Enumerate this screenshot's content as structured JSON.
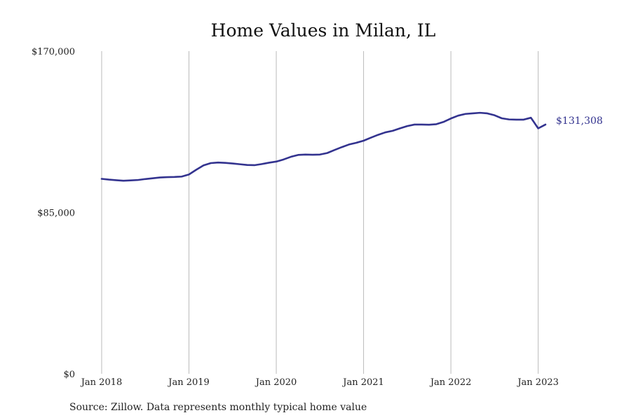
{
  "chart_data": {
    "type": "line",
    "title": "Home Values in Milan, IL",
    "xlabel": "",
    "ylabel": "",
    "source": "Source: Zillow. Data represents monthly typical home value",
    "x_ticks": [
      "Jan 2018",
      "Jan 2019",
      "Jan 2020",
      "Jan 2021",
      "Jan 2022",
      "Jan 2023"
    ],
    "y_ticks": [
      "$0",
      "$85,000",
      "$170,000"
    ],
    "y_tick_values": [
      0,
      85000,
      170000
    ],
    "ylim": [
      0,
      170000
    ],
    "xlim": [
      "2018-01",
      "2023-02"
    ],
    "grid": "vertical",
    "line_color": "#33338f",
    "grid_color": "#bbbbbb",
    "end_label": "$131,308",
    "series": [
      {
        "x": [
          "2018-01",
          "2018-02",
          "2018-03",
          "2018-04",
          "2018-05",
          "2018-06",
          "2018-07",
          "2018-08",
          "2018-09",
          "2018-10",
          "2018-11",
          "2018-12",
          "2019-01",
          "2019-02",
          "2019-03",
          "2019-04",
          "2019-05",
          "2019-06",
          "2019-07",
          "2019-08",
          "2019-09",
          "2019-10",
          "2019-11",
          "2019-12",
          "2020-01",
          "2020-02",
          "2020-03",
          "2020-04",
          "2020-05",
          "2020-06",
          "2020-07",
          "2020-08",
          "2020-09",
          "2020-10",
          "2020-11",
          "2020-12",
          "2021-01",
          "2021-02",
          "2021-03",
          "2021-04",
          "2021-05",
          "2021-06",
          "2021-07",
          "2021-08",
          "2021-09",
          "2021-10",
          "2021-11",
          "2021-12",
          "2022-01",
          "2022-02",
          "2022-03",
          "2022-04",
          "2022-05",
          "2022-06",
          "2022-07",
          "2022-08",
          "2022-09",
          "2022-10",
          "2022-11",
          "2022-12",
          "2023-01",
          "2023-02"
        ],
        "values": [
          102700,
          102300,
          102000,
          101700,
          101900,
          102100,
          102600,
          103000,
          103400,
          103600,
          103700,
          103900,
          105000,
          107500,
          109800,
          111000,
          111300,
          111100,
          110800,
          110400,
          110000,
          109900,
          110500,
          111200,
          111800,
          112900,
          114300,
          115300,
          115500,
          115400,
          115500,
          116300,
          117900,
          119400,
          120800,
          121700,
          122800,
          124400,
          125900,
          127200,
          128000,
          129300,
          130500,
          131300,
          131300,
          131200,
          131500,
          132700,
          134500,
          136000,
          136900,
          137200,
          137500,
          137200,
          136200,
          134600,
          134000,
          133900,
          133900,
          134900,
          129300,
          131308
        ]
      }
    ]
  }
}
